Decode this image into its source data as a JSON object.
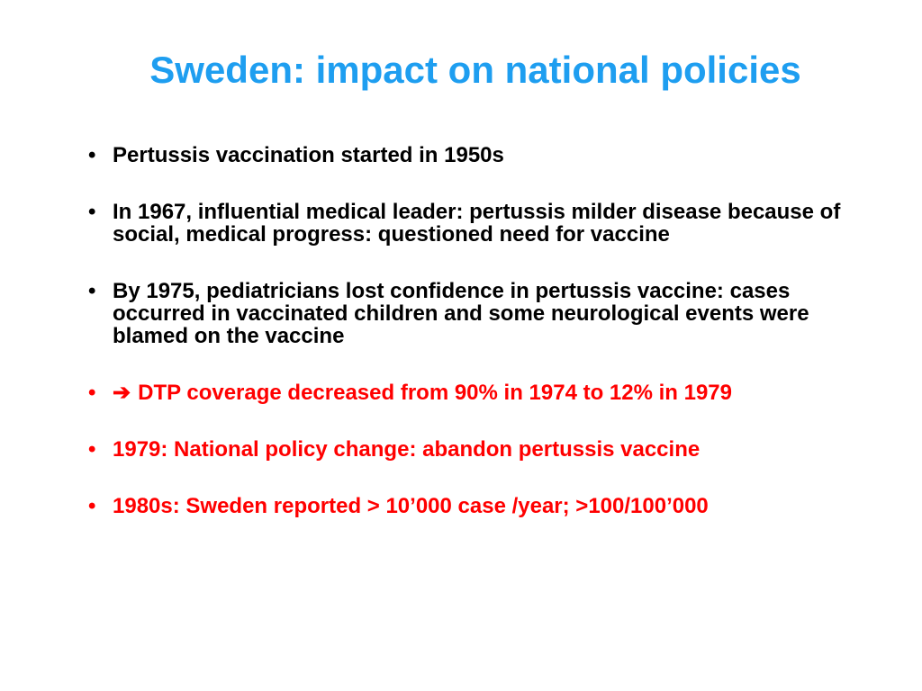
{
  "slide": {
    "title": "Sweden: impact on national policies",
    "title_color": "#1e9ef0",
    "normal_text_color": "#000000",
    "highlight_text_color": "#ff0000",
    "bullet_glyph": "•",
    "arrow_glyph": "➔",
    "bullets": [
      {
        "text": "Pertussis vaccination started in 1950s",
        "highlight": false
      },
      {
        "text": "In 1967, influential medical leader: pertussis milder disease because of social, medical progress: questioned need for vaccine",
        "highlight": false
      },
      {
        "text": "By 1975, pediatricians lost confidence in pertussis vaccine: cases occurred in vaccinated children and some neurological events were blamed on the vaccine",
        "highlight": false
      },
      {
        "text": "DTP coverage decreased from 90% in 1974 to 12% in 1979",
        "highlight": true,
        "icon": "arrow-right-icon"
      },
      {
        "text": "1979: National policy change: abandon pertussis vaccine",
        "highlight": true
      },
      {
        "text": "1980s: Sweden reported > 10’000 case /year; >100/100’000",
        "highlight": true
      }
    ]
  }
}
